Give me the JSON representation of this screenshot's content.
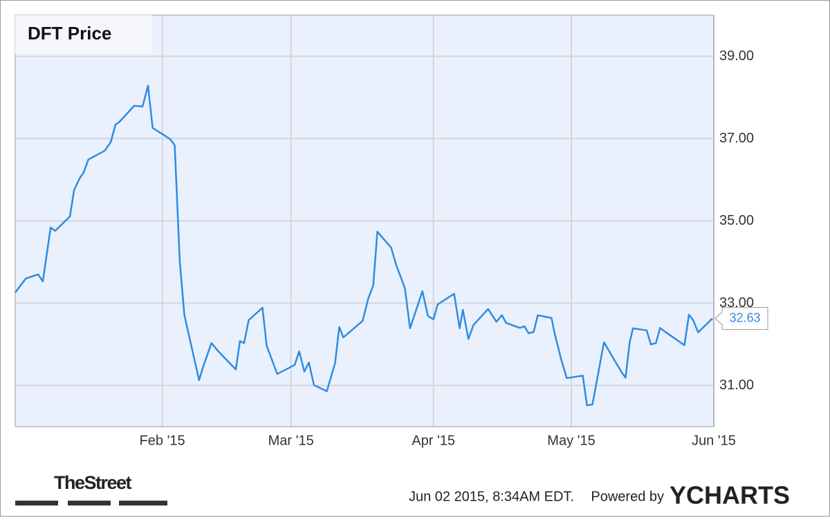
{
  "chart_data": {
    "type": "line",
    "title": "DFT Price",
    "xlim": [
      0,
      152
    ],
    "xticks": [
      {
        "value": 32,
        "label": "Feb '15"
      },
      {
        "value": 60,
        "label": "Mar '15"
      },
      {
        "value": 91,
        "label": "Apr '15"
      },
      {
        "value": 121,
        "label": "May '15"
      },
      {
        "value": 152,
        "label": "Jun '15"
      }
    ],
    "ylim": [
      30,
      40
    ],
    "yticks": [
      {
        "value": 31,
        "label": "31.00"
      },
      {
        "value": 33,
        "label": "33.00"
      },
      {
        "value": 35,
        "label": "35.00"
      },
      {
        "value": 37,
        "label": "37.00"
      },
      {
        "value": 39,
        "label": "39.00"
      }
    ],
    "grid": true,
    "series": [
      {
        "color": "#2f8be3",
        "x": [
          0,
          2.3,
          5.0,
          6.0,
          7.7,
          8.7,
          11.9,
          12.8,
          14.0,
          14.9,
          15.9,
          19.5,
          20.8,
          21.8,
          22.7,
          25.9,
          27.7,
          28.9,
          29.9,
          32.3,
          33.7,
          34.7,
          35.8,
          36.8,
          40.0,
          40.9,
          42.7,
          44.2,
          48.0,
          48.9,
          49.8,
          50.8,
          53.8,
          54.7,
          57.0,
          60.8,
          61.8,
          62.9,
          63.9,
          65.0,
          67.8,
          69.6,
          70.5,
          71.4,
          75.6,
          76.8,
          77.9,
          78.8,
          81.8,
          82.9,
          84.8,
          85.9,
          88.6,
          89.8,
          91.0,
          91.9,
          95.5,
          96.7,
          97.4,
          98.6,
          99.7,
          102.9,
          104.7,
          105.9,
          106.8,
          109.8,
          110.8,
          111.7,
          112.8,
          113.7,
          116.7,
          117.4,
          118.8,
          120.0,
          123.5,
          124.4,
          125.6,
          128.1,
          131.9,
          132.8,
          133.7,
          134.4,
          137.4,
          138.3,
          139.4,
          140.3,
          141.5,
          145.6,
          146.6,
          147.5,
          148.6,
          151.7
        ],
        "values": [
          33.26,
          33.6,
          33.7,
          33.53,
          34.84,
          34.76,
          35.11,
          35.75,
          36.03,
          36.18,
          36.49,
          36.71,
          36.92,
          37.34,
          37.41,
          37.8,
          37.78,
          38.29,
          37.26,
          37.09,
          36.99,
          36.84,
          34.02,
          32.72,
          31.13,
          31.46,
          32.03,
          31.83,
          31.39,
          32.08,
          32.03,
          32.59,
          32.89,
          31.97,
          31.28,
          31.5,
          31.83,
          31.34,
          31.56,
          31.01,
          30.86,
          31.55,
          32.42,
          32.17,
          32.57,
          33.11,
          33.43,
          34.74,
          34.35,
          33.93,
          33.36,
          32.39,
          33.29,
          32.69,
          32.61,
          32.97,
          33.23,
          32.39,
          32.84,
          32.13,
          32.47,
          32.86,
          32.55,
          32.71,
          32.52,
          32.4,
          32.44,
          32.27,
          32.3,
          32.71,
          32.64,
          32.25,
          31.63,
          31.18,
          31.24,
          30.52,
          30.54,
          32.05,
          31.33,
          31.19,
          32.05,
          32.39,
          32.34,
          32.0,
          32.03,
          32.4,
          32.3,
          31.98,
          32.72,
          32.59,
          32.29,
          32.63
        ]
      }
    ],
    "logo": "TheStreet",
    "timestamp": "Jun 02 2015, 8:34AM EDT.",
    "powered_by": "Powered by",
    "brand": "YCHARTS"
  }
}
